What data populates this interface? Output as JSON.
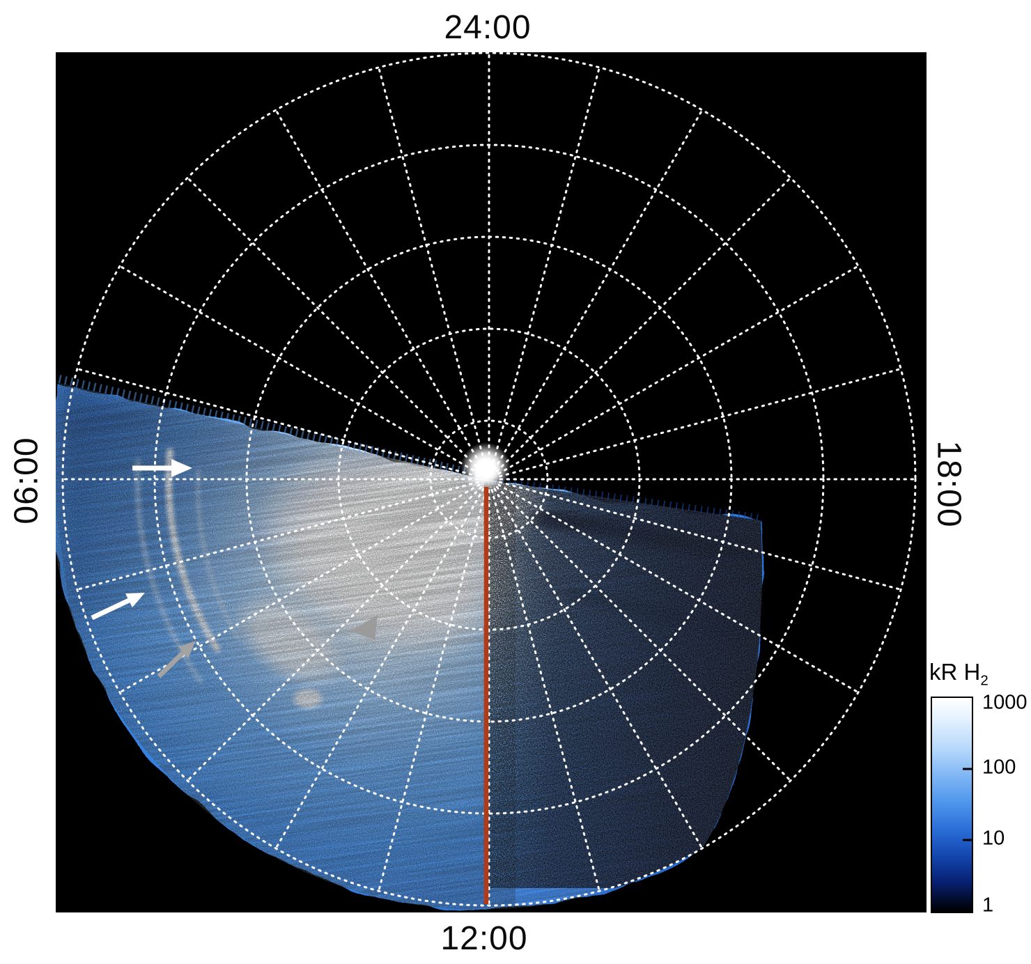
{
  "figure": {
    "time_labels": {
      "top": "24:00",
      "right": "18:00",
      "bottom": "12:00",
      "left": "06:00"
    },
    "colorbar": {
      "title_main": "kR H",
      "title_sub": "2",
      "ticks": [
        "1000",
        "100",
        "10",
        "1"
      ]
    },
    "colors": {
      "background": "#000000",
      "grid_dots": "#ffffff",
      "meridian_line": "#b33a17",
      "emission_core": "#ffffff",
      "emission_mid": "#2f7fd8",
      "emission_dark": "#0a2a6e"
    }
  },
  "chart_data": {
    "type": "heatmap",
    "projection": "polar",
    "title": "",
    "angular_axis": {
      "unit": "local time",
      "labels": [
        "24:00",
        "18:00",
        "12:00",
        "06:00"
      ],
      "label_positions": [
        "top",
        "right",
        "bottom",
        "left"
      ],
      "spoke_interval_deg": 15,
      "grid_style": "white dotted"
    },
    "radial_axis": {
      "rings": 5,
      "grid_style": "white dotted",
      "tick_labels": []
    },
    "colorbar": {
      "label": "kR H2",
      "scale": "log",
      "min": 1,
      "max": 1000,
      "ticks": [
        1000,
        100,
        10,
        1
      ],
      "gradient": [
        "#ffffff",
        "#7db4f4",
        "#2a6cd6",
        "#082173",
        "#000000"
      ]
    },
    "series_note": "Polar-projected auroral H2 emission image: saturated white emission region near the pole on the dawn/noon side; blue emission fills roughly the 05:30-to-16:30 local-time sector; dusk-side sector dark navy and speckled; remainder of dial is black (no emission).",
    "annotations": [
      {
        "type": "arrow",
        "color": "#ffffff",
        "position": "upper-left near 06:00",
        "target": "bright narrow dawn arc"
      },
      {
        "type": "arrow",
        "color": "#ffffff",
        "position": "lower-left",
        "target": "bright narrow dawn arc (lower segment)"
      },
      {
        "type": "arrow",
        "color": "#a3a3a3",
        "position": "lower-left",
        "target": "fainter outer arc feature"
      },
      {
        "type": "arrowhead",
        "color": "#9b9b9b",
        "position": "left of 12:00 meridian, mid-radius",
        "target": "faint arc feature"
      },
      {
        "type": "line",
        "color": "#b33a17",
        "description": "solid red line along the 12:00 meridian from pole to outer ring"
      }
    ]
  }
}
